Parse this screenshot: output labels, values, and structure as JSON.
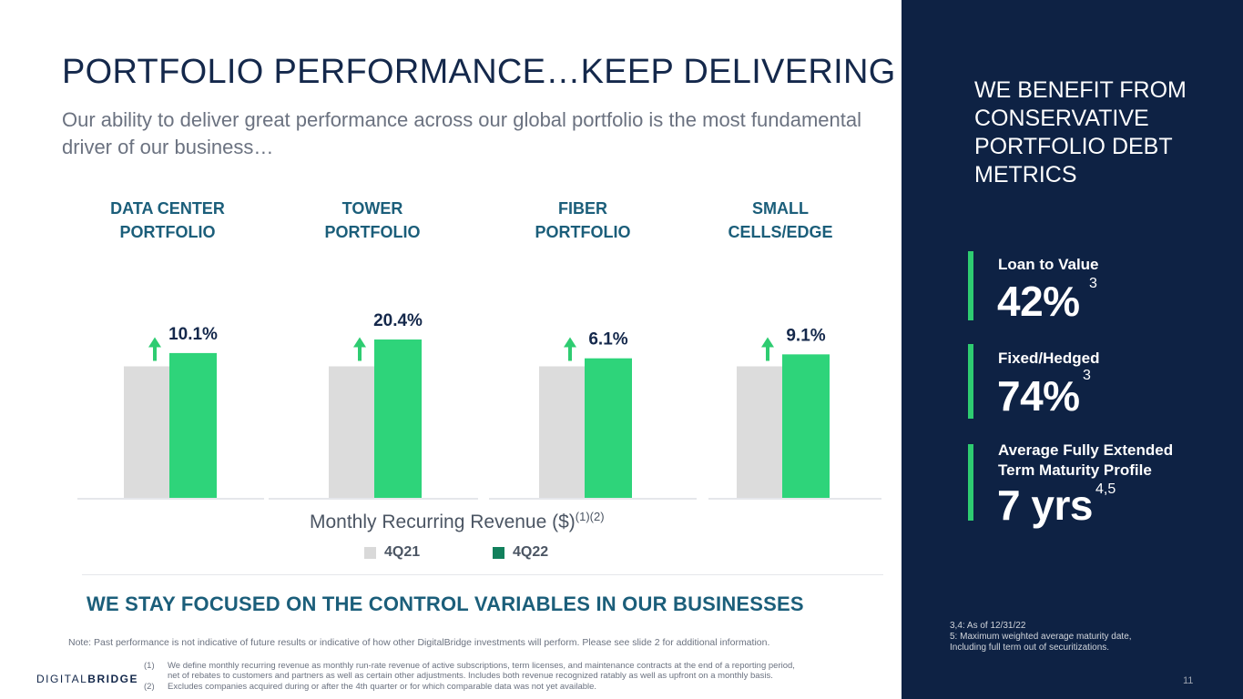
{
  "title": "PORTFOLIO PERFORMANCE…KEEP DELIVERING",
  "subtitle": "Our ability to deliver great performance across our global portfolio is the most fundamental driver of our business…",
  "chart_data": {
    "type": "bar",
    "categories": [
      "DATA CENTER PORTFOLIO",
      "TOWER PORTFOLIO",
      "FIBER PORTFOLIO",
      "SMALL CELLS/EDGE"
    ],
    "category_lines": [
      [
        "DATA CENTER",
        "PORTFOLIO"
      ],
      [
        "TOWER",
        "PORTFOLIO"
      ],
      [
        "FIBER",
        "PORTFOLIO"
      ],
      [
        "SMALL",
        "CELLS/EDGE"
      ]
    ],
    "series": [
      {
        "name": "4Q21",
        "values": [
          100,
          100,
          100,
          100
        ],
        "color": "#dcdcdc"
      },
      {
        "name": "4Q22",
        "values": [
          110.1,
          120.4,
          106.1,
          109.1
        ],
        "color": "#2ed47a"
      }
    ],
    "growth_labels": [
      "10.1%",
      "20.4%",
      "6.1%",
      "9.1%"
    ],
    "xlabel": "Monthly Recurring Revenue ($)",
    "xlabel_sup": "(1)(2)",
    "legend": [
      {
        "label": "4Q21",
        "color": "#d9d9d9"
      },
      {
        "label": "4Q22",
        "color": "#12805c"
      }
    ],
    "arrow_color": "#2ecc71"
  },
  "focus": "WE STAY FOCUSED ON THE CONTROL VARIABLES IN OUR BUSINESSES",
  "note": "Note: Past performance is not indicative of future results or indicative of how other DigitalBridge investments will perform.  Please see slide 2 for additional information.",
  "footnotes": [
    {
      "num": "(1)",
      "line1": "We define monthly recurring revenue as monthly run-rate revenue of active subscriptions, term licenses, and maintenance contracts at the end of a reporting period,",
      "line2": "net of rebates to customers and partners as well as certain other adjustments. Includes both revenue recognized ratably as well as upfront on a monthly basis."
    },
    {
      "num": "(2)",
      "line1": "Excludes companies acquired during or after the 4th quarter or for which comparable data was not yet available.",
      "line2": ""
    }
  ],
  "logo": {
    "part1": "DIGITAL",
    "part2": "BRIDGE"
  },
  "panel": {
    "title": "WE BENEFIT FROM CONSERVATIVE PORTFOLIO DEBT METRICS",
    "metrics": [
      {
        "label": "Loan to Value",
        "value": "42%",
        "sup": "3"
      },
      {
        "label": "Fixed/Hedged",
        "value": "74%",
        "sup": "3"
      },
      {
        "label": "Average Fully Extended Term Maturity Profile",
        "value": "7 yrs",
        "sup": "4,5"
      }
    ],
    "footnotes": [
      "3,4:  As of 12/31/22",
      "5:     Maximum weighted average maturity date,",
      "          Including full term out of securitizations."
    ],
    "page_number": "11",
    "accent": "#2ecc71",
    "background": "#0e2244"
  }
}
